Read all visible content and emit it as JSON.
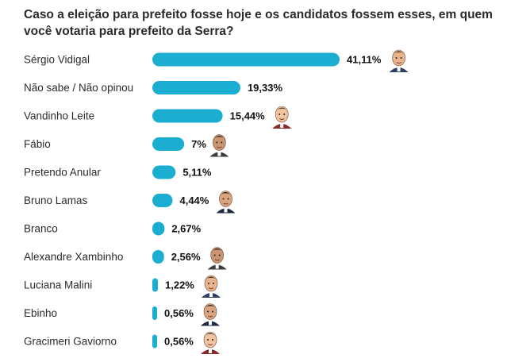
{
  "title": "Caso a eleição para prefeito fosse hoje e os candidatos fossem esses, em quem você votaria para prefeito da Serra?",
  "colors": {
    "bar": "#1baed1",
    "text": "#2b2b2b",
    "value_text": "#111111"
  },
  "chart_data": {
    "type": "bar",
    "orientation": "horizontal",
    "title": "Caso a eleição para prefeito fosse hoje e os candidatos fossem esses, em quem você votaria para prefeito da Serra?",
    "xlabel": "",
    "ylabel": "",
    "grid": false,
    "legend": "none",
    "categories": [
      "Sérgio Vidigal",
      "Não sabe / Não opinou",
      "Vandinho Leite",
      "Fábio",
      "Pretendo Anular",
      "Bruno Lamas",
      "Branco",
      "Alexandre Xambinho",
      "Luciana Malini",
      "Ebinho",
      "Gracimeri Gaviorno"
    ],
    "values": [
      41.11,
      19.33,
      15.44,
      7,
      5.11,
      4.44,
      2.67,
      2.56,
      1.22,
      0.56,
      0.56
    ],
    "value_labels": [
      "41,11%",
      "19,33%",
      "15,44%",
      "7%",
      "5,11%",
      "4,44%",
      "2,67%",
      "2,56%",
      "1,22%",
      "0,56%",
      "0,56%"
    ],
    "portraits": [
      true,
      false,
      true,
      true,
      false,
      true,
      false,
      true,
      true,
      true,
      true
    ],
    "xlim": [
      0,
      41.11
    ]
  }
}
